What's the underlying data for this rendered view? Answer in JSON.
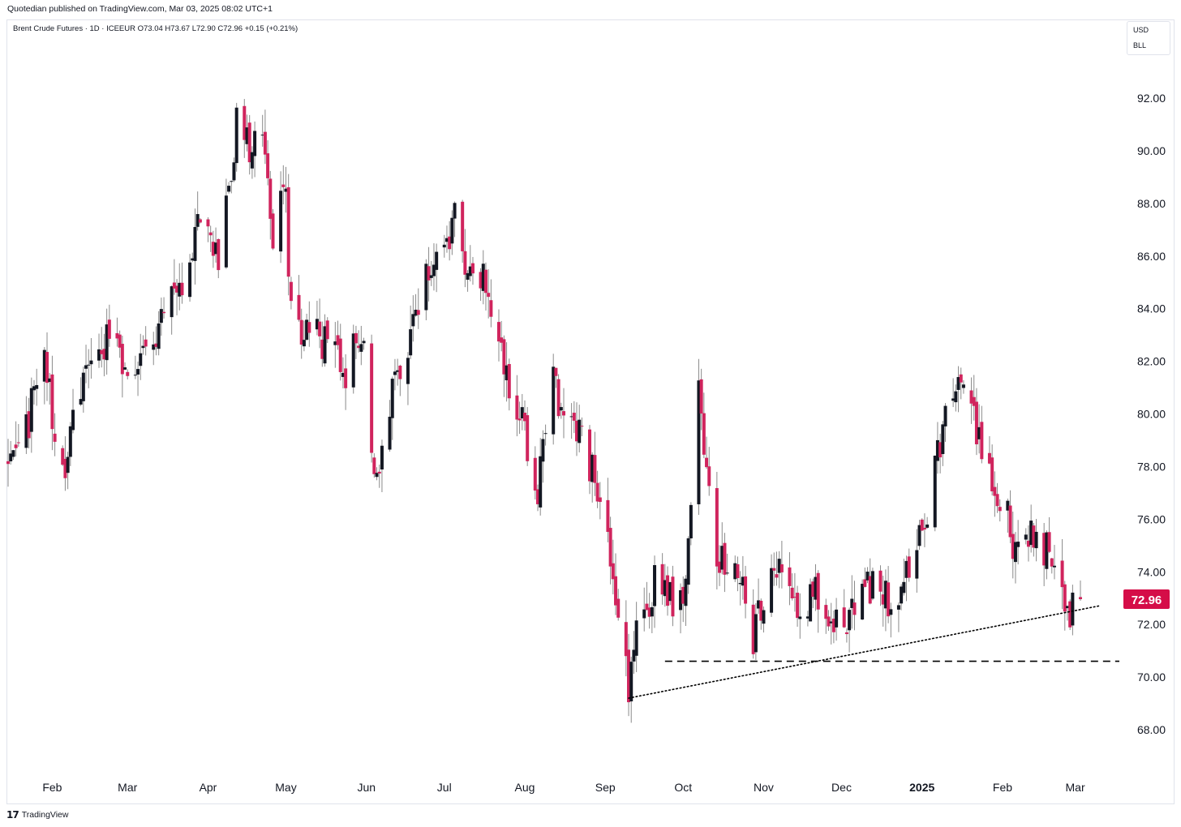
{
  "header": {
    "published_line": "Quotedian published on TradingView.com, Mar 03, 2025 08:02 UTC+1",
    "symbol_line": "Brent Crude Futures · 1D · ICEEUR  O73.04  H73.67  L72.90  C72.96  +0.15 (+0.21%)"
  },
  "scale_box": {
    "currency": "USD",
    "unit": "BLL"
  },
  "footer": {
    "logo_icon": "tradingview-logo-icon",
    "brand": "TradingView"
  },
  "colors": {
    "up": "#131722",
    "down": "#d0245d",
    "wick": "#8a8a8a",
    "price_tag": "#d50d48"
  },
  "chart_data": {
    "type": "candlestick",
    "title": "Brent Crude Futures",
    "interval": "1D",
    "ylim": [
      67,
      94.5
    ],
    "y_ticks": [
      68,
      70,
      72,
      74,
      76,
      78,
      80,
      82,
      84,
      86,
      88,
      90,
      92
    ],
    "y_tick_labels": [
      "68.00",
      "70.00",
      "72.00",
      "74.00",
      "76.00",
      "78.00",
      "80.00",
      "82.00",
      "84.00",
      "86.00",
      "88.00",
      "90.00",
      "92.00"
    ],
    "x_range": [
      "2024-01-15",
      "2025-03-18"
    ],
    "x_ticks": [
      {
        "label": "Feb",
        "date": "2024-02-01",
        "bold": false
      },
      {
        "label": "Mar",
        "date": "2024-03-01",
        "bold": false
      },
      {
        "label": "Apr",
        "date": "2024-04-01",
        "bold": false
      },
      {
        "label": "May",
        "date": "2024-05-01",
        "bold": false
      },
      {
        "label": "Jun",
        "date": "2024-06-01",
        "bold": false
      },
      {
        "label": "Jul",
        "date": "2024-07-01",
        "bold": false
      },
      {
        "label": "Aug",
        "date": "2024-08-01",
        "bold": false
      },
      {
        "label": "Sep",
        "date": "2024-09-01",
        "bold": false
      },
      {
        "label": "Oct",
        "date": "2024-10-01",
        "bold": false
      },
      {
        "label": "Nov",
        "date": "2024-11-01",
        "bold": false
      },
      {
        "label": "Dec",
        "date": "2024-12-01",
        "bold": false
      },
      {
        "label": "2025",
        "date": "2025-01-01",
        "bold": true
      },
      {
        "label": "Feb",
        "date": "2025-02-01",
        "bold": false
      },
      {
        "label": "Mar",
        "date": "2025-03-01",
        "bold": false
      }
    ],
    "last_price": 72.96,
    "last_price_label": "72.96",
    "ohlc": {
      "open": 73.04,
      "high": 73.67,
      "low": 72.9,
      "close": 72.96,
      "change": 0.15,
      "change_pct": 0.21
    },
    "price_path": [
      [
        "2024-01-15",
        78.3
      ],
      [
        "2024-01-22",
        79.5
      ],
      [
        "2024-01-29",
        82.0
      ],
      [
        "2024-02-05",
        77.5
      ],
      [
        "2024-02-09",
        79.8
      ],
      [
        "2024-02-16",
        82.5
      ],
      [
        "2024-02-23",
        83.0
      ],
      [
        "2024-03-01",
        82.0
      ],
      [
        "2024-03-08",
        82.5
      ],
      [
        "2024-03-15",
        83.8
      ],
      [
        "2024-03-22",
        84.8
      ],
      [
        "2024-03-29",
        87.2
      ],
      [
        "2024-04-05",
        85.5
      ],
      [
        "2024-04-10",
        89.5
      ],
      [
        "2024-04-12",
        91.0
      ],
      [
        "2024-04-18",
        89.8
      ],
      [
        "2024-04-22",
        90.5
      ],
      [
        "2024-04-26",
        87.0
      ],
      [
        "2024-05-01",
        88.2
      ],
      [
        "2024-05-03",
        83.5
      ],
      [
        "2024-05-10",
        83.2
      ],
      [
        "2024-05-17",
        82.5
      ],
      [
        "2024-05-24",
        81.5
      ],
      [
        "2024-05-31",
        83.5
      ],
      [
        "2024-06-04",
        77.5
      ],
      [
        "2024-06-10",
        80.5
      ],
      [
        "2024-06-17",
        82.8
      ],
      [
        "2024-06-24",
        85.5
      ],
      [
        "2024-07-03",
        86.5
      ],
      [
        "2024-07-05",
        87.4
      ],
      [
        "2024-07-10",
        85.0
      ],
      [
        "2024-07-17",
        85.2
      ],
      [
        "2024-07-24",
        81.5
      ],
      [
        "2024-07-31",
        80.0
      ],
      [
        "2024-08-05",
        76.5
      ],
      [
        "2024-08-12",
        81.5
      ],
      [
        "2024-08-16",
        79.5
      ],
      [
        "2024-08-23",
        79.0
      ],
      [
        "2024-08-30",
        77.0
      ],
      [
        "2024-09-05",
        72.5
      ],
      [
        "2024-09-10",
        69.5
      ],
      [
        "2024-09-13",
        71.8
      ],
      [
        "2024-09-20",
        73.5
      ],
      [
        "2024-09-27",
        73.0
      ],
      [
        "2024-10-02",
        73.5
      ],
      [
        "2024-10-07",
        80.5
      ],
      [
        "2024-10-10",
        77.5
      ],
      [
        "2024-10-15",
        74.3
      ],
      [
        "2024-10-22",
        74.0
      ],
      [
        "2024-10-28",
        71.4
      ],
      [
        "2024-11-04",
        74.5
      ],
      [
        "2024-11-08",
        73.5
      ],
      [
        "2024-11-15",
        71.8
      ],
      [
        "2024-11-21",
        73.5
      ],
      [
        "2024-11-27",
        72.5
      ],
      [
        "2024-12-05",
        72.3
      ],
      [
        "2024-12-12",
        73.5
      ],
      [
        "2024-12-19",
        72.8
      ],
      [
        "2024-12-27",
        73.8
      ],
      [
        "2025-01-03",
        76.5
      ],
      [
        "2025-01-10",
        79.8
      ],
      [
        "2025-01-15",
        82.0
      ],
      [
        "2025-01-20",
        80.0
      ],
      [
        "2025-01-27",
        77.5
      ],
      [
        "2025-02-03",
        76.0
      ],
      [
        "2025-02-07",
        74.5
      ],
      [
        "2025-02-12",
        75.5
      ],
      [
        "2025-02-17",
        75.0
      ],
      [
        "2025-02-21",
        74.5
      ],
      [
        "2025-02-24",
        73.5
      ],
      [
        "2025-02-26",
        72.5
      ],
      [
        "2025-02-28",
        72.8
      ],
      [
        "2025-03-03",
        72.96
      ]
    ],
    "annotations": [
      {
        "type": "horizontal_dashed",
        "y": 70.6,
        "x_from": "2024-09-24",
        "x_to": "2025-03-18"
      },
      {
        "type": "dotted_trendline",
        "from": [
          "2024-09-10",
          69.2
        ],
        "to": [
          "2025-03-10",
          72.7
        ]
      }
    ]
  }
}
